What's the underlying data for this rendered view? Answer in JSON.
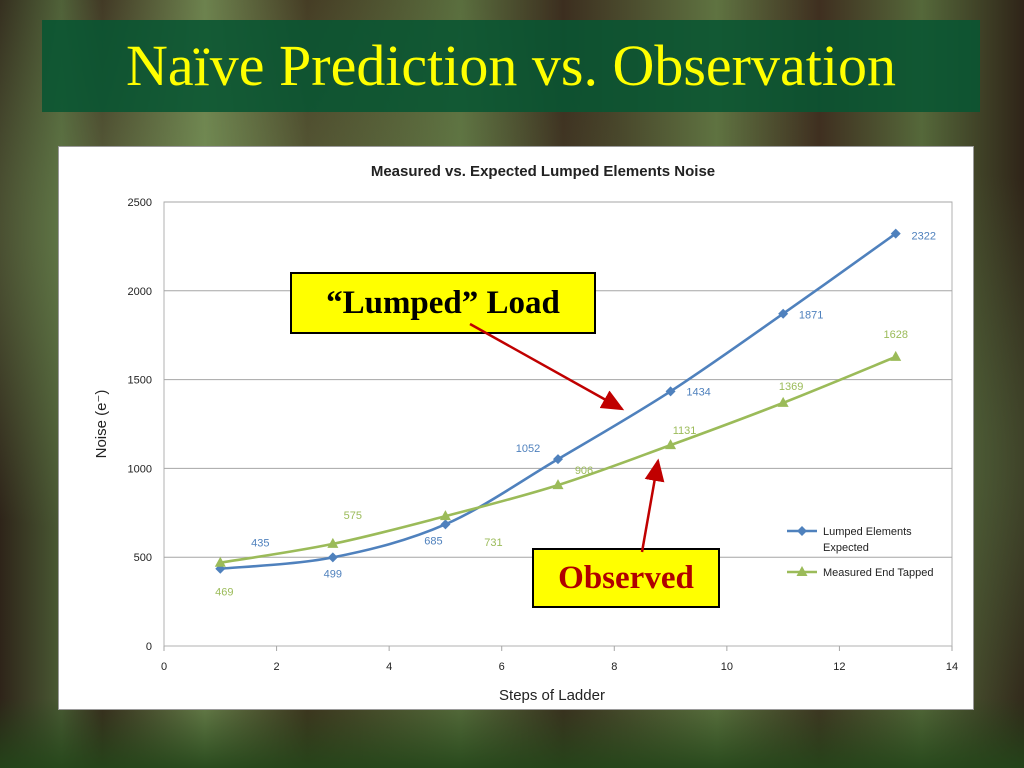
{
  "slide": {
    "title": "Naïve Prediction vs. Observation"
  },
  "callouts": {
    "lumped": "“Lumped” Load",
    "observed": "Observed"
  },
  "chart_data": {
    "type": "line",
    "title": "Measured vs. Expected Lumped Elements Noise",
    "xlabel": "Steps of Ladder",
    "ylabel": "Noise (e⁻)",
    "xlim": [
      0,
      14
    ],
    "ylim": [
      0,
      2500
    ],
    "xticks": [
      0,
      2,
      4,
      6,
      8,
      10,
      12,
      14
    ],
    "yticks": [
      0,
      500,
      1000,
      1500,
      2000,
      2500
    ],
    "grid": "horizontal",
    "legend_position": "right",
    "series": [
      {
        "name": "Lumped Elements Expected",
        "color": "#4f81bd",
        "marker": "diamond",
        "x": [
          1,
          3,
          5,
          7,
          9,
          11,
          13
        ],
        "y": [
          435,
          499,
          685,
          1052,
          1434,
          1871,
          2322
        ],
        "labels": [
          "435",
          "499",
          "685",
          "1052",
          "1434",
          "1871",
          "2322"
        ]
      },
      {
        "name": "Measured  End Tapped",
        "color": "#9bbb59",
        "marker": "triangle",
        "x": [
          1,
          3,
          5,
          7,
          9,
          11,
          13
        ],
        "y": [
          469,
          575,
          731,
          906,
          1131,
          1369,
          1628
        ],
        "labels": [
          "469",
          "575",
          "731",
          "906",
          "1131",
          "1369",
          "1628"
        ]
      }
    ]
  }
}
